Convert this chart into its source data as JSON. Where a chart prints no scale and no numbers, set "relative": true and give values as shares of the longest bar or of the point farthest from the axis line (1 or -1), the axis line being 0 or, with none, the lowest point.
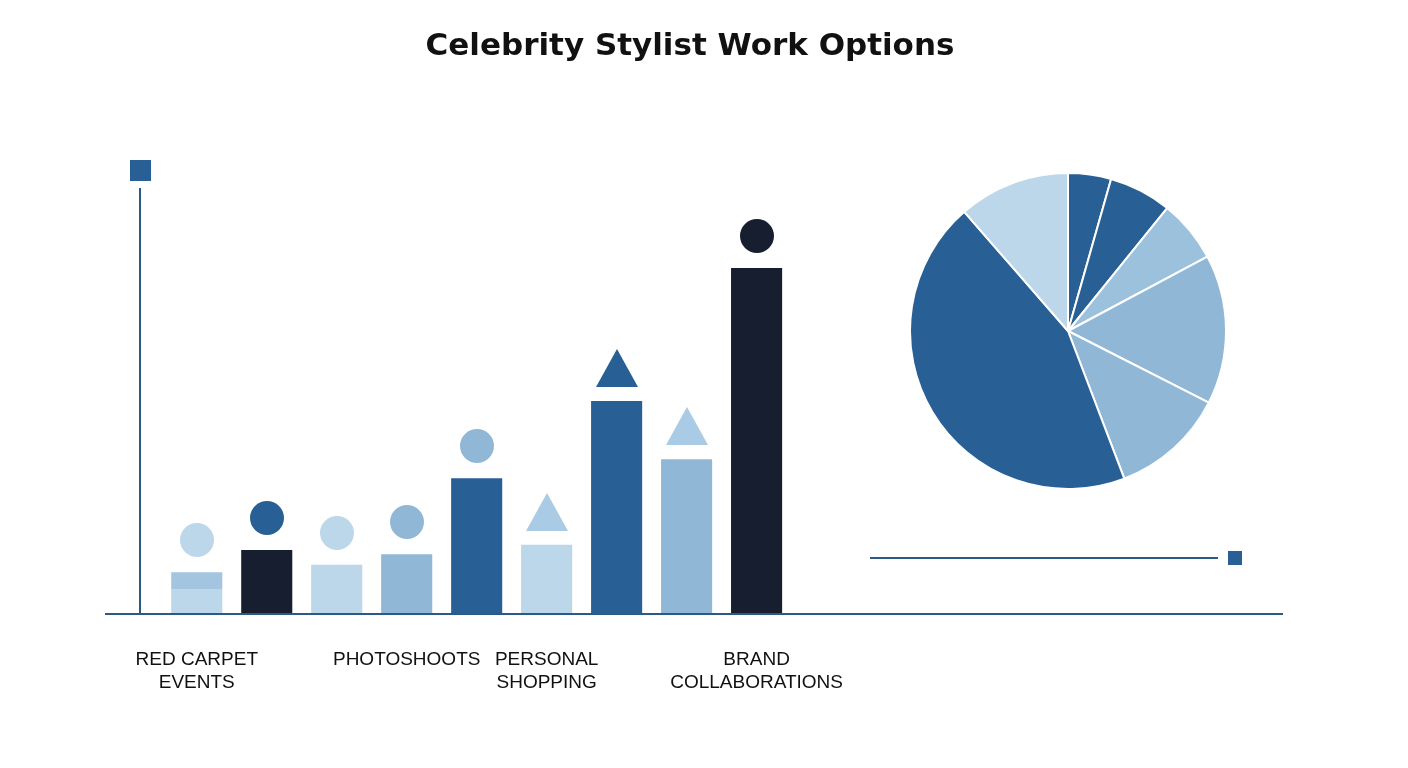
{
  "chart_data": [
    {
      "type": "bar",
      "title": "Celebrity Stylist Work Options",
      "categories": [
        "RED CARPET EVENTS",
        null,
        null,
        "PHOTOSHOOTS",
        null,
        "PERSONAL SHOPPING",
        null,
        null,
        "BRAND COLLABORATIONS"
      ],
      "stacked": true,
      "relative": true,
      "series": [
        {
          "colors": [
            "#bcd6ea",
            "#161e30",
            "#bcd6ea",
            "#90b8d6",
            "#285f94",
            "#bcd6ea",
            "#285f94",
            "#90b8d6",
            "#161e30"
          ],
          "values": [
            0.073,
            0.186,
            0.079,
            0.174,
            0.393,
            0.201,
            0.616,
            0.448,
            1
          ]
        },
        {
          "colors": [
            "#a3c5e0",
            null,
            "#bcd6ea",
            null,
            null,
            null,
            null,
            null,
            null
          ],
          "values": [
            0.049,
            null,
            0.064,
            null,
            null,
            null,
            null,
            null,
            null
          ]
        }
      ]
    },
    {
      "type": "pie",
      "categories": [
        null,
        null,
        null,
        null,
        null,
        null,
        null
      ],
      "values": [
        4.4,
        6.4,
        6.4,
        15.3,
        11.7,
        44.4,
        11.4
      ],
      "colors": [
        "#285f94",
        "#285f94",
        "#9bc1dd",
        "#90b8d6",
        "#90b8d6",
        "#285f94",
        "#bcd6ea"
      ]
    }
  ]
}
